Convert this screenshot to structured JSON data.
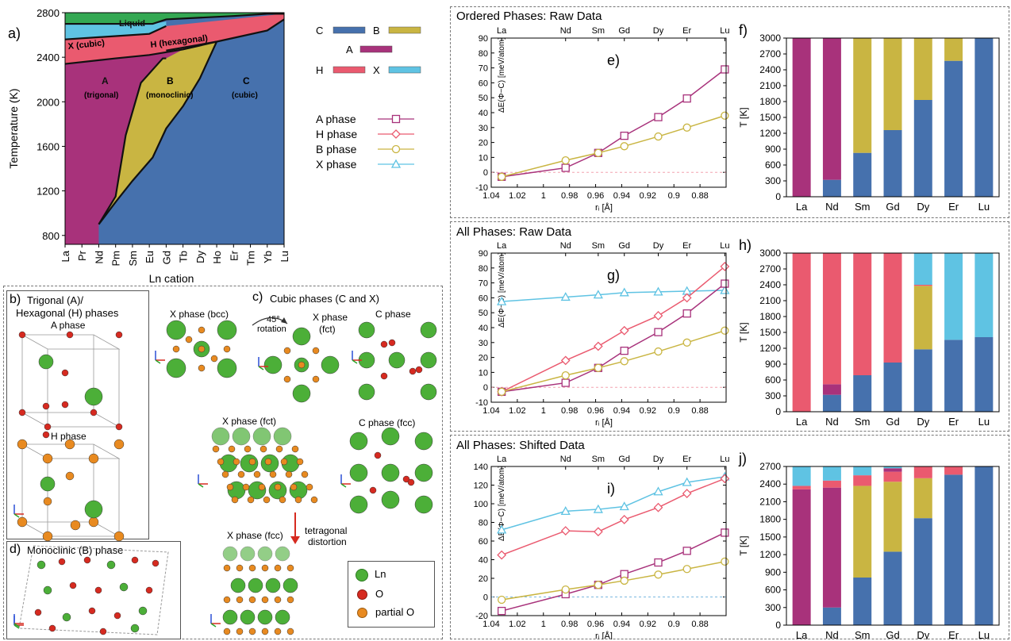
{
  "colors": {
    "A": "#a8327b",
    "B": "#c9b542",
    "C": "#4671ad",
    "H": "#ea5a6f",
    "X": "#5fc3e3",
    "Liquid": "#34a853",
    "Ln": "#4caf38",
    "O": "#d62a20",
    "partialO": "#e88a20"
  },
  "chart_data": [
    {
      "id": "a",
      "type": "area",
      "panel_label": "a)",
      "ylabel": "Temperature (K)",
      "xlabel": "Ln cation",
      "yticks": [
        800,
        1200,
        1600,
        2000,
        2400,
        2800
      ],
      "ylim": [
        720,
        2800
      ],
      "categories": [
        "La",
        "Pr",
        "Nd",
        "Pm",
        "Sm",
        "Eu",
        "Gd",
        "Tb",
        "Dy",
        "Ho",
        "Er",
        "Tm",
        "Yb",
        "Lu"
      ],
      "regions": [
        {
          "phase": "Liquid",
          "label": "Liquid"
        },
        {
          "phase": "X",
          "label": "X (cubic)"
        },
        {
          "phase": "H",
          "label": "H (hexagonal)"
        },
        {
          "phase": "A",
          "label": "A",
          "sublabel": "(trigonal)"
        },
        {
          "phase": "B",
          "label": "B",
          "sublabel": "(monoclinic)"
        },
        {
          "phase": "C",
          "label": "C",
          "sublabel": "(cubic)"
        }
      ],
      "boundaries": {
        "liquidus": [
          [
            0,
            2700
          ],
          [
            5.2,
            2700
          ],
          [
            6,
            2740
          ],
          [
            10,
            2770
          ],
          [
            12,
            2790
          ],
          [
            13,
            2790
          ]
        ],
        "X_H": [
          [
            0,
            2560
          ],
          [
            5,
            2610
          ],
          [
            6,
            2680
          ]
        ],
        "A_upper": [
          [
            0,
            2340
          ],
          [
            3,
            2390
          ],
          [
            5,
            2420
          ],
          [
            7,
            2470
          ],
          [
            9,
            2540
          ]
        ],
        "H_C": [
          [
            6,
            2460
          ],
          [
            9,
            2540
          ],
          [
            12,
            2640
          ],
          [
            13,
            2740
          ]
        ],
        "A_B": [
          [
            2,
            900
          ],
          [
            3,
            1150
          ],
          [
            3.6,
            1700
          ],
          [
            4.5,
            2170
          ],
          [
            5.8,
            2390
          ],
          [
            6,
            2390
          ]
        ],
        "B_C": [
          [
            2,
            900
          ],
          [
            3,
            1100
          ],
          [
            4,
            1290
          ],
          [
            5.2,
            1500
          ],
          [
            6,
            1760
          ],
          [
            7,
            1960
          ],
          [
            8,
            2210
          ],
          [
            9,
            2540
          ]
        ]
      }
    },
    {
      "id": "e",
      "type": "line",
      "panel_label": "e)",
      "section_title": "Ordered Phases: Raw Data",
      "ylabel": "ΔE(Φ−C) [meV/atom]",
      "xlabel": "rᵢ [Å]",
      "x_ticks": [
        1.04,
        1.02,
        1,
        0.98,
        0.96,
        0.94,
        0.92,
        0.9,
        0.88
      ],
      "x_range": [
        1.04,
        0.86
      ],
      "y_ticks": [
        -10,
        0,
        10,
        20,
        30,
        40,
        50,
        60,
        70,
        80,
        90
      ],
      "ylim": [
        -10,
        90
      ],
      "top_labels": [
        {
          "name": "La",
          "x": 1.032
        },
        {
          "name": "Nd",
          "x": 0.983
        },
        {
          "name": "Sm",
          "x": 0.958
        },
        {
          "name": "Gd",
          "x": 0.938
        },
        {
          "name": "Dy",
          "x": 0.912
        },
        {
          "name": "Er",
          "x": 0.89
        },
        {
          "name": "Lu",
          "x": 0.861
        }
      ],
      "series": [
        {
          "name": "A phase",
          "color": "#a8327b",
          "marker": "square",
          "x": [
            1.032,
            0.983,
            0.958,
            0.938,
            0.912,
            0.89,
            0.861
          ],
          "y": [
            -3,
            3,
            13,
            24.5,
            37,
            49.5,
            69
          ]
        },
        {
          "name": "B phase",
          "color": "#c9b542",
          "marker": "circle",
          "x": [
            1.032,
            0.983,
            0.958,
            0.938,
            0.912,
            0.89,
            0.861
          ],
          "y": [
            -3,
            8,
            13,
            17.5,
            24,
            30,
            38
          ]
        }
      ],
      "zero_line_color": "#f4a3b0"
    },
    {
      "id": "f",
      "type": "bar",
      "panel_label": "f)",
      "ylabel": "T [K]",
      "categories": [
        "La",
        "Nd",
        "Sm",
        "Gd",
        "Dy",
        "Er",
        "Lu"
      ],
      "y_ticks": [
        0,
        300,
        600,
        900,
        1200,
        1500,
        1800,
        2100,
        2400,
        2700,
        3000
      ],
      "ylim": [
        0,
        3000
      ],
      "stacks": [
        [
          {
            "phase": "A",
            "value": 3000
          }
        ],
        [
          {
            "phase": "C",
            "value": 320
          },
          {
            "phase": "A",
            "value": 2680
          }
        ],
        [
          {
            "phase": "C",
            "value": 830
          },
          {
            "phase": "B",
            "value": 2170
          }
        ],
        [
          {
            "phase": "C",
            "value": 1260
          },
          {
            "phase": "B",
            "value": 1740
          }
        ],
        [
          {
            "phase": "C",
            "value": 1830
          },
          {
            "phase": "B",
            "value": 1170
          }
        ],
        [
          {
            "phase": "C",
            "value": 2570
          },
          {
            "phase": "B",
            "value": 430
          }
        ],
        [
          {
            "phase": "C",
            "value": 3000
          }
        ]
      ]
    },
    {
      "id": "g",
      "type": "line",
      "panel_label": "g)",
      "section_title": "All Phases: Raw Data",
      "ylabel": "ΔE(Φ−C) [meV/atom]",
      "xlabel": "rᵢ [Å]",
      "x_ticks": [
        1.04,
        1.02,
        1,
        0.98,
        0.96,
        0.94,
        0.92,
        0.9,
        0.88
      ],
      "x_range": [
        1.04,
        0.86
      ],
      "y_ticks": [
        -10,
        0,
        10,
        20,
        30,
        40,
        50,
        60,
        70,
        80,
        90
      ],
      "ylim": [
        -10,
        90
      ],
      "top_labels": [
        {
          "name": "La",
          "x": 1.032
        },
        {
          "name": "Nd",
          "x": 0.983
        },
        {
          "name": "Sm",
          "x": 0.958
        },
        {
          "name": "Gd",
          "x": 0.938
        },
        {
          "name": "Dy",
          "x": 0.912
        },
        {
          "name": "Er",
          "x": 0.89
        },
        {
          "name": "Lu",
          "x": 0.861
        }
      ],
      "series": [
        {
          "name": "X phase",
          "color": "#5fc3e3",
          "marker": "triangle",
          "x": [
            1.032,
            0.983,
            0.958,
            0.938,
            0.912,
            0.89,
            0.861
          ],
          "y": [
            57.5,
            60.5,
            62,
            63.5,
            64,
            64.5,
            65
          ]
        },
        {
          "name": "H phase",
          "color": "#ea5a6f",
          "marker": "diamond",
          "x": [
            1.032,
            0.983,
            0.958,
            0.938,
            0.912,
            0.89,
            0.861
          ],
          "y": [
            -3,
            18,
            27.5,
            38,
            48,
            60,
            81
          ]
        },
        {
          "name": "A phase",
          "color": "#a8327b",
          "marker": "square",
          "x": [
            1.032,
            0.983,
            0.958,
            0.938,
            0.912,
            0.89,
            0.861
          ],
          "y": [
            -3,
            3,
            13,
            24.5,
            37,
            49.5,
            69.5
          ]
        },
        {
          "name": "B phase",
          "color": "#c9b542",
          "marker": "circle",
          "x": [
            1.032,
            0.983,
            0.958,
            0.938,
            0.912,
            0.89,
            0.861
          ],
          "y": [
            -3,
            8,
            13,
            17.5,
            24,
            30,
            38
          ]
        }
      ],
      "zero_line_color": "#f4a3b0"
    },
    {
      "id": "h",
      "type": "bar",
      "panel_label": "h)",
      "ylabel": "T [K]",
      "categories": [
        "La",
        "Nd",
        "Sm",
        "Gd",
        "Dy",
        "Er",
        "Lu"
      ],
      "y_ticks": [
        0,
        300,
        600,
        900,
        1200,
        1500,
        1800,
        2100,
        2400,
        2700,
        3000
      ],
      "ylim": [
        0,
        3000
      ],
      "stacks": [
        [
          {
            "phase": "H",
            "value": 3000
          }
        ],
        [
          {
            "phase": "C",
            "value": 320
          },
          {
            "phase": "A",
            "value": 200
          },
          {
            "phase": "H",
            "value": 2480
          }
        ],
        [
          {
            "phase": "C",
            "value": 690
          },
          {
            "phase": "H",
            "value": 2310
          }
        ],
        [
          {
            "phase": "C",
            "value": 930
          },
          {
            "phase": "H",
            "value": 2070
          }
        ],
        [
          {
            "phase": "C",
            "value": 1180
          },
          {
            "phase": "B",
            "value": 1200
          },
          {
            "phase": "H",
            "value": 20
          },
          {
            "phase": "X",
            "value": 600
          }
        ],
        [
          {
            "phase": "C",
            "value": 1360
          },
          {
            "phase": "X",
            "value": 1640
          }
        ],
        [
          {
            "phase": "C",
            "value": 1410
          },
          {
            "phase": "X",
            "value": 1590
          }
        ]
      ]
    },
    {
      "id": "i",
      "type": "line",
      "panel_label": "i)",
      "section_title": "All Phases: Shifted Data",
      "ylabel": "ΔE(Φ−C) [meV/atom]",
      "xlabel": "rᵢ [Å]",
      "x_ticks": [
        1.04,
        1.02,
        1,
        0.98,
        0.96,
        0.94,
        0.92,
        0.9,
        0.88
      ],
      "x_range": [
        1.04,
        0.86
      ],
      "y_ticks": [
        -20,
        0,
        20,
        40,
        60,
        80,
        100,
        120,
        140
      ],
      "ylim": [
        -20,
        140
      ],
      "top_labels": [
        {
          "name": "La",
          "x": 1.032
        },
        {
          "name": "Nd",
          "x": 0.983
        },
        {
          "name": "Sm",
          "x": 0.958
        },
        {
          "name": "Gd",
          "x": 0.938
        },
        {
          "name": "Dy",
          "x": 0.912
        },
        {
          "name": "Er",
          "x": 0.89
        },
        {
          "name": "Lu",
          "x": 0.861
        }
      ],
      "series": [
        {
          "name": "X phase",
          "color": "#5fc3e3",
          "marker": "triangle",
          "x": [
            1.032,
            0.983,
            0.958,
            0.938,
            0.912,
            0.89,
            0.861
          ],
          "y": [
            72,
            92,
            94,
            97,
            113,
            123,
            129
          ]
        },
        {
          "name": "H phase",
          "color": "#ea5a6f",
          "marker": "diamond",
          "x": [
            1.032,
            0.983,
            0.958,
            0.938,
            0.912,
            0.89,
            0.861
          ],
          "y": [
            45,
            71,
            70,
            83,
            96,
            111,
            127
          ]
        },
        {
          "name": "A phase",
          "color": "#a8327b",
          "marker": "square",
          "x": [
            1.032,
            0.983,
            0.958,
            0.938,
            0.912,
            0.89,
            0.861
          ],
          "y": [
            -15,
            3,
            13,
            24.5,
            37,
            49.5,
            69
          ]
        },
        {
          "name": "B phase",
          "color": "#c9b542",
          "marker": "circle",
          "x": [
            1.032,
            0.983,
            0.958,
            0.938,
            0.912,
            0.89,
            0.861
          ],
          "y": [
            -3,
            8,
            13,
            17.5,
            24,
            30,
            38
          ]
        }
      ],
      "zero_line_color": "#7ab8e0"
    },
    {
      "id": "j",
      "type": "bar",
      "panel_label": "j)",
      "ylabel": "T [K]",
      "categories": [
        "La",
        "Nd",
        "Sm",
        "Gd",
        "Dy",
        "Er",
        "Lu"
      ],
      "y_ticks": [
        0,
        300,
        600,
        900,
        1200,
        1500,
        1800,
        2100,
        2400,
        2700
      ],
      "ylim": [
        0,
        2700
      ],
      "stacks": [
        [
          {
            "phase": "A",
            "value": 2310
          },
          {
            "phase": "H",
            "value": 60
          },
          {
            "phase": "X",
            "value": 330
          }
        ],
        [
          {
            "phase": "C",
            "value": 300
          },
          {
            "phase": "A",
            "value": 2040
          },
          {
            "phase": "H",
            "value": 120
          },
          {
            "phase": "X",
            "value": 240
          }
        ],
        [
          {
            "phase": "C",
            "value": 810
          },
          {
            "phase": "B",
            "value": 1560
          },
          {
            "phase": "H",
            "value": 180
          },
          {
            "phase": "X",
            "value": 150
          }
        ],
        [
          {
            "phase": "C",
            "value": 1250
          },
          {
            "phase": "B",
            "value": 1190
          },
          {
            "phase": "H",
            "value": 170
          },
          {
            "phase": "A",
            "value": 60
          },
          {
            "phase": "X",
            "value": 30
          }
        ],
        [
          {
            "phase": "C",
            "value": 1820
          },
          {
            "phase": "B",
            "value": 680
          },
          {
            "phase": "H",
            "value": 200
          }
        ],
        [
          {
            "phase": "C",
            "value": 2560
          },
          {
            "phase": "H",
            "value": 140
          }
        ],
        [
          {
            "phase": "C",
            "value": 2700
          }
        ]
      ]
    }
  ],
  "legends": {
    "phase_color_legend": [
      {
        "label": "C",
        "phase": "C"
      },
      {
        "label": "B",
        "phase": "B"
      },
      {
        "label": "A",
        "phase": "A"
      },
      {
        "label": "H",
        "phase": "H"
      },
      {
        "label": "X",
        "phase": "X"
      }
    ],
    "series_legend": [
      {
        "label": "A phase",
        "phase": "A",
        "marker": "square"
      },
      {
        "label": "H phase",
        "phase": "H",
        "marker": "diamond"
      },
      {
        "label": "B phase",
        "phase": "B",
        "marker": "circle"
      },
      {
        "label": "X phase",
        "phase": "X",
        "marker": "triangle"
      }
    ]
  },
  "structures": {
    "b": {
      "label": "b)",
      "title_line1": "Trigonal (A)/",
      "title_line2": "Hexagonal (H) phases",
      "a_phase": "A phase",
      "h_phase": "H phase"
    },
    "c": {
      "label": "c)",
      "title": "Cubic phases (C and X)",
      "x_bcc": "X phase (bcc)",
      "x_fct_top_1": "X phase",
      "x_fct_top_2": "(fct)",
      "rotation_1": "45°",
      "rotation_2": "rotation",
      "c_phase": "C phase",
      "x_fct": "X phase (fct)",
      "c_fcc": "C phase (fcc)",
      "distortion_1": "tetragonal",
      "distortion_2": "distortion",
      "x_fcc": "X phase (fcc)"
    },
    "d": {
      "label": "d)",
      "title": "Monoclinic (B) phase"
    },
    "ion_legend": [
      {
        "label": "Ln",
        "kind": "Ln"
      },
      {
        "label": "O",
        "kind": "O"
      },
      {
        "label": "partial O",
        "kind": "partialO"
      }
    ]
  }
}
